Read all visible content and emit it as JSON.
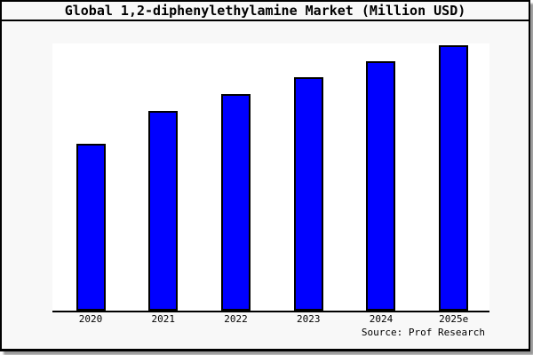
{
  "chart_data": {
    "type": "bar",
    "title": "Global 1,2-diphenylethylamine Market (Million USD)",
    "categories": [
      "2020",
      "2021",
      "2022",
      "2023",
      "2024",
      "2025e"
    ],
    "values": [
      62.5,
      74.8,
      81.1,
      87.4,
      93.2,
      99.5
    ],
    "values_note": "No y-axis ticks or value labels are shown in the chart; values are relative bar heights estimated from pixels on a 0-100 scale (2025e tallest).",
    "xlabel": "",
    "ylabel": "",
    "ylim": [
      0,
      100
    ],
    "grid": false,
    "legend_position": "none",
    "bar_fill_color": "#0000ff",
    "bar_border_color": "#000000",
    "plot_background": "#ffffff",
    "page_background": "#f8f8f8",
    "source_label": "Source: Prof Research"
  }
}
